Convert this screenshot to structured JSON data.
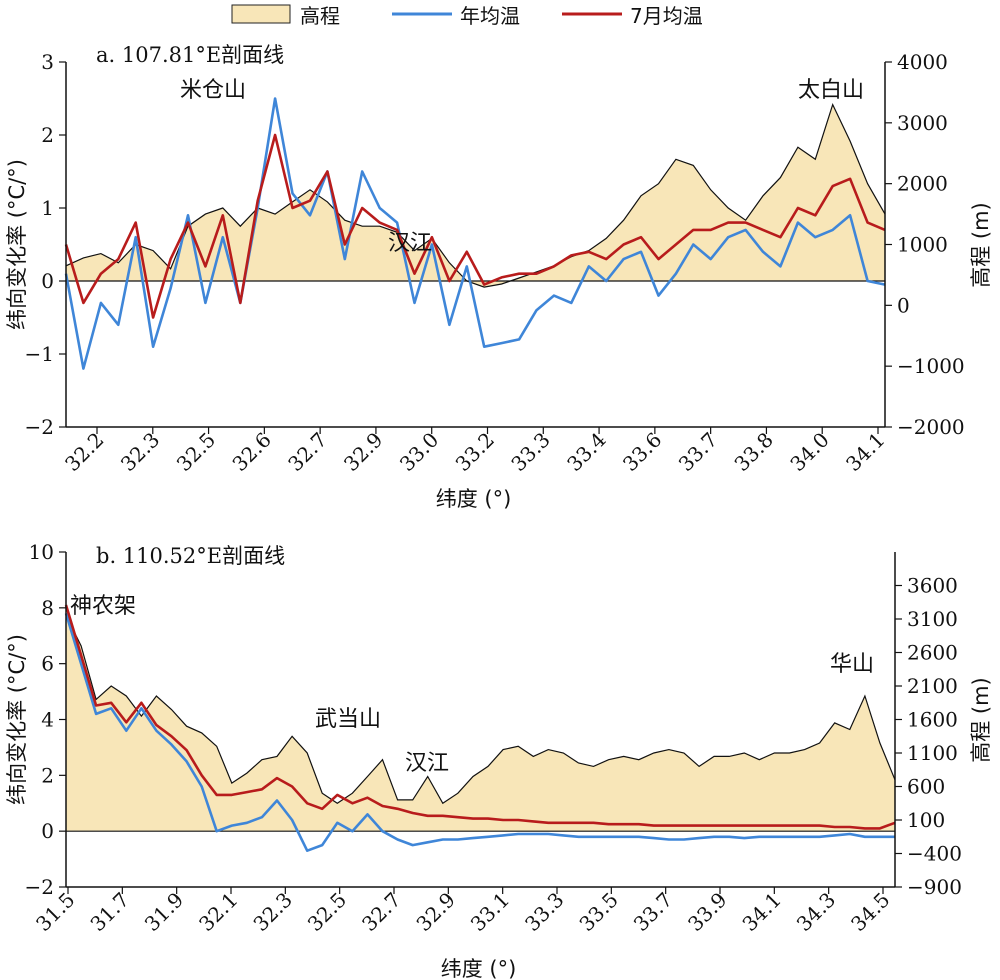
{
  "legend": {
    "items": [
      {
        "label": "高程",
        "color": "#f8e6b8",
        "kind": "area"
      },
      {
        "label": "年均温",
        "color": "#3f86d8",
        "kind": "line"
      },
      {
        "label": "7月均温",
        "color": "#b81c1c",
        "kind": "line"
      }
    ],
    "placement": "top-center"
  },
  "colors": {
    "elevation_fill": "#f8e6b8",
    "annual": "#3f86d8",
    "july": "#b81c1c"
  },
  "chart_data": [
    {
      "type": "line",
      "title": "a. 107.81°E剖面线",
      "xlabel": "纬度 (°)",
      "ylabel": "纬向变化率 (°C/°)",
      "y2label": "高程 (m)",
      "xticks": [
        "32.2",
        "32.3",
        "32.5",
        "32.6",
        "32.7",
        "32.9",
        "33.0",
        "33.2",
        "33.3",
        "33.4",
        "33.6",
        "33.7",
        "33.8",
        "34.0",
        "34.1"
      ],
      "ylim": [
        -2,
        3
      ],
      "y2lim": [
        -2000,
        4000
      ],
      "yticks": [
        -2,
        -1,
        0,
        1,
        2,
        3
      ],
      "y2ticks": [
        -2000,
        -1000,
        0,
        1000,
        2000,
        3000,
        4000
      ],
      "annotations": [
        {
          "text": "米仓山",
          "x": 0.18
        },
        {
          "text": "汉江",
          "x": 0.42
        },
        {
          "text": "太白山",
          "x": 0.92
        }
      ],
      "series": [
        {
          "name": "高程",
          "axis": "right",
          "values": [
            650,
            780,
            850,
            700,
            1000,
            900,
            600,
            1300,
            1500,
            1600,
            1300,
            1600,
            1500,
            1700,
            1900,
            1700,
            1400,
            1300,
            1300,
            1200,
            900,
            1100,
            700,
            400,
            300,
            350,
            450,
            550,
            650,
            800,
            900,
            1100,
            1400,
            1800,
            2000,
            2400,
            2300,
            1900,
            1600,
            1400,
            1800,
            2100,
            2600,
            2400,
            3300,
            2700,
            2000,
            1500
          ]
        },
        {
          "name": "年均温",
          "axis": "left",
          "values": [
            0.1,
            -1.2,
            -0.3,
            -0.6,
            0.6,
            -0.9,
            -0.1,
            0.9,
            -0.3,
            0.6,
            -0.3,
            1.0,
            2.5,
            1.2,
            0.9,
            1.5,
            0.3,
            1.5,
            1.0,
            0.8,
            -0.3,
            0.5,
            -0.6,
            0.2,
            -0.9,
            -0.85,
            -0.8,
            -0.4,
            -0.2,
            -0.3,
            0.2,
            0.0,
            0.3,
            0.4,
            -0.2,
            0.1,
            0.5,
            0.3,
            0.6,
            0.7,
            0.4,
            0.2,
            0.8,
            0.6,
            0.7,
            0.9,
            0.0,
            -0.05
          ]
        },
        {
          "name": "7月均温",
          "axis": "left",
          "values": [
            0.5,
            -0.3,
            0.1,
            0.3,
            0.8,
            -0.5,
            0.3,
            0.8,
            0.2,
            0.9,
            -0.3,
            1.1,
            2.0,
            1.0,
            1.1,
            1.5,
            0.5,
            1.0,
            0.8,
            0.7,
            0.1,
            0.6,
            0.0,
            0.4,
            -0.05,
            0.05,
            0.1,
            0.1,
            0.2,
            0.35,
            0.4,
            0.3,
            0.5,
            0.6,
            0.3,
            0.5,
            0.7,
            0.7,
            0.8,
            0.8,
            0.7,
            0.6,
            1.0,
            0.9,
            1.3,
            1.4,
            0.8,
            0.7
          ]
        }
      ]
    },
    {
      "type": "line",
      "title": "b. 110.52°E剖面线",
      "xlabel": "纬度 (°)",
      "ylabel": "纬向变化率 (°C/°)",
      "y2label": "高程 (m)",
      "xticks": [
        "31.5",
        "31.7",
        "31.9",
        "32.1",
        "32.3",
        "32.5",
        "32.7",
        "32.9",
        "33.1",
        "33.3",
        "33.5",
        "33.7",
        "33.9",
        "34.1",
        "34.3",
        "34.5"
      ],
      "ylim": [
        -2,
        10
      ],
      "y2lim": [
        -900,
        4100
      ],
      "yticks": [
        -2,
        0,
        2,
        4,
        6,
        8,
        10
      ],
      "y2ticks": [
        -900,
        -400,
        100,
        600,
        1100,
        1600,
        2100,
        2600,
        3100,
        3600
      ],
      "annotations": [
        {
          "text": "神农架",
          "x": 0.0
        },
        {
          "text": "武当山",
          "x": 0.34
        },
        {
          "text": "汉江",
          "x": 0.45
        },
        {
          "text": "华山",
          "x": 0.96
        }
      ],
      "series": [
        {
          "name": "高程",
          "axis": "right",
          "values": [
            3150,
            2700,
            1900,
            2100,
            1950,
            1650,
            1950,
            1750,
            1500,
            1400,
            1200,
            650,
            800,
            1000,
            1050,
            1350,
            1100,
            500,
            350,
            500,
            750,
            1000,
            400,
            400,
            750,
            350,
            500,
            750,
            900,
            1150,
            1200,
            1050,
            1150,
            1100,
            950,
            900,
            1000,
            1050,
            1000,
            1100,
            1150,
            1100,
            900,
            1050,
            1050,
            1100,
            1000,
            1100,
            1100,
            1150,
            1250,
            1550,
            1450,
            1950,
            1250,
            700
          ]
        },
        {
          "name": "年均温",
          "axis": "left",
          "values": [
            7.8,
            6.0,
            4.2,
            4.4,
            3.6,
            4.4,
            3.6,
            3.1,
            2.5,
            1.6,
            0.0,
            0.2,
            0.3,
            0.5,
            1.1,
            0.4,
            -0.7,
            -0.5,
            0.3,
            0.0,
            0.6,
            0.0,
            -0.3,
            -0.5,
            -0.4,
            -0.3,
            -0.3,
            -0.25,
            -0.2,
            -0.15,
            -0.1,
            -0.1,
            -0.1,
            -0.15,
            -0.2,
            -0.2,
            -0.2,
            -0.2,
            -0.2,
            -0.25,
            -0.3,
            -0.3,
            -0.25,
            -0.2,
            -0.2,
            -0.25,
            -0.2,
            -0.2,
            -0.2,
            -0.2,
            -0.2,
            -0.15,
            -0.1,
            -0.2,
            -0.2,
            -0.2
          ]
        },
        {
          "name": "7月均温",
          "axis": "left",
          "values": [
            8.1,
            6.3,
            4.5,
            4.6,
            3.9,
            4.6,
            3.8,
            3.4,
            2.9,
            2.0,
            1.3,
            1.3,
            1.4,
            1.5,
            1.9,
            1.6,
            1.0,
            0.8,
            1.3,
            1.0,
            1.2,
            0.9,
            0.8,
            0.65,
            0.55,
            0.55,
            0.5,
            0.45,
            0.45,
            0.4,
            0.4,
            0.35,
            0.3,
            0.3,
            0.3,
            0.3,
            0.25,
            0.25,
            0.25,
            0.2,
            0.2,
            0.2,
            0.2,
            0.2,
            0.2,
            0.2,
            0.2,
            0.2,
            0.2,
            0.2,
            0.2,
            0.15,
            0.15,
            0.1,
            0.1,
            0.3
          ]
        }
      ]
    }
  ]
}
